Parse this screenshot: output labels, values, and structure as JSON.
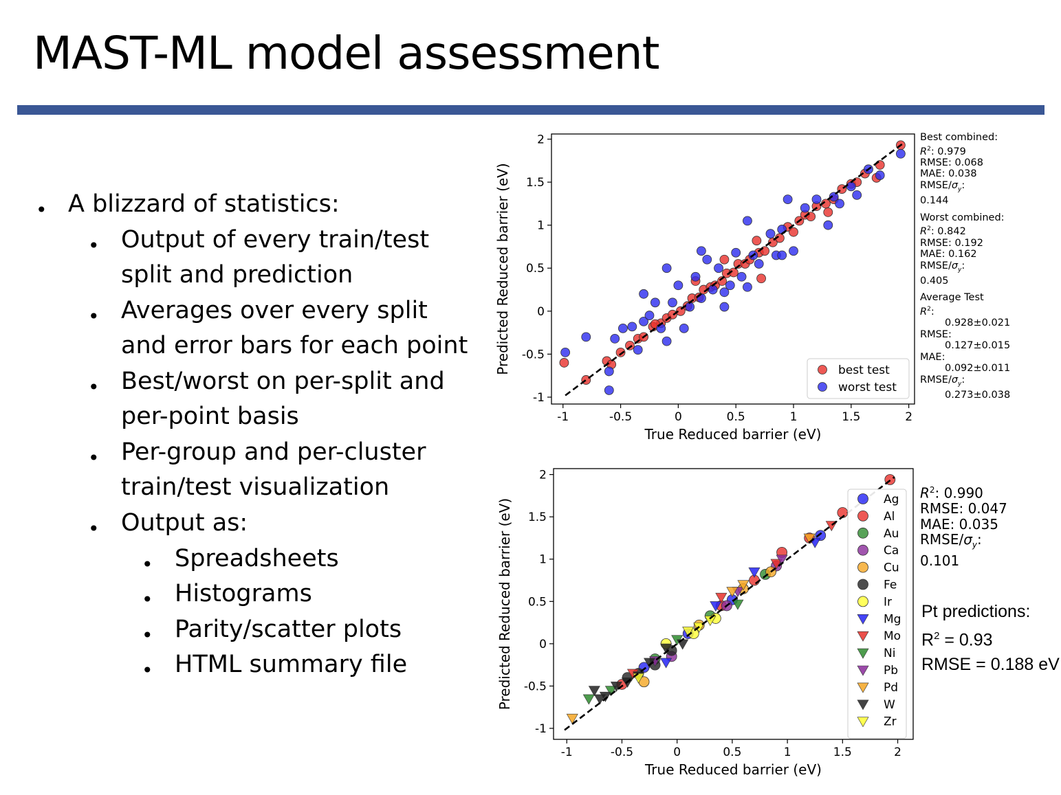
{
  "title": "MAST-ML model assessment",
  "bullets": [
    {
      "level": 1,
      "text": "A blizzard of statistics:"
    },
    {
      "level": 2,
      "text": "Output of every train/test"
    },
    {
      "level": 0,
      "text": "split and prediction"
    },
    {
      "level": 2,
      "text": "Averages over every split"
    },
    {
      "level": 0,
      "text": "and error bars for each point"
    },
    {
      "level": 2,
      "text": "Best/worst on per-split and"
    },
    {
      "level": 0,
      "text": "per-point basis"
    },
    {
      "level": 2,
      "text": "Per-group and per-cluster"
    },
    {
      "level": 0,
      "text": "train/test visualization"
    },
    {
      "level": 2,
      "text": "Output as:"
    },
    {
      "level": 3,
      "text": "Spreadsheets"
    },
    {
      "level": 3,
      "text": "Histograms"
    },
    {
      "level": 3,
      "text": "Parity/scatter plots"
    },
    {
      "level": 3,
      "text": "HTML summary file"
    }
  ],
  "stats_top": {
    "best_header": "Best combined:",
    "best_r2": ": 0.979",
    "best_rmse": "RMSE: 0.068",
    "best_mae": "MAE: 0.038",
    "best_ratio_label": "RMSE/",
    "best_ratio_value": "0.144",
    "worst_header": "Worst combined:",
    "worst_r2": ": 0.842",
    "worst_rmse": "RMSE: 0.192",
    "worst_mae": "MAE: 0.162",
    "worst_ratio_label": "RMSE/",
    "worst_ratio_value": "0.405",
    "avg_header": "Average Test",
    "avg_r2_value": "0.928±0.021",
    "avg_rmse_label": "RMSE:",
    "avg_rmse_value": "0.127±0.015",
    "avg_mae_label": "MAE:",
    "avg_mae_value": "0.092±0.011",
    "avg_ratio_label": "RMSE/",
    "avg_ratio_value": "0.273±0.038"
  },
  "stats_bottom": {
    "r2": ": 0.990",
    "rmse": "RMSE: 0.047",
    "mae": "MAE: 0.035",
    "ratio_label": "RMSE/",
    "ratio_value": "0.101"
  },
  "pt_predictions": {
    "header": "Pt predictions:",
    "r2_label": "R",
    "r2_value": " = 0.93",
    "rmse": "RMSE = 0.188 eV"
  },
  "chart_data": [
    {
      "type": "scatter",
      "xlabel": "True Reduced barrier (eV)",
      "ylabel": "Predicted Reduced barrier (eV)",
      "xlim": [
        -1.1,
        2.05
      ],
      "ylim": [
        -1.08,
        2.06
      ],
      "xticks": [
        -1,
        -0.5,
        0,
        0.5,
        1,
        1.5,
        2
      ],
      "yticks": [
        -1,
        -0.5,
        0,
        0.5,
        1,
        1.5,
        2
      ],
      "tick_labels": [
        "-1",
        "-0.5",
        "0",
        "0.5",
        "1",
        "1.5",
        "2"
      ],
      "grid": false,
      "parity_line": true,
      "legend": "bottom-right",
      "series": [
        {
          "name": "best test",
          "color": "#e8302a",
          "marker": "circle",
          "x": [
            -0.99,
            -0.8,
            -0.62,
            -0.58,
            -0.5,
            -0.42,
            -0.35,
            -0.3,
            -0.22,
            -0.15,
            -0.1,
            -0.05,
            0.02,
            0.08,
            0.12,
            0.18,
            0.22,
            0.28,
            0.32,
            0.38,
            0.42,
            0.48,
            0.52,
            0.58,
            0.62,
            0.7,
            0.75,
            0.82,
            0.88,
            0.95,
            1.0,
            1.05,
            1.1,
            1.15,
            1.2,
            1.28,
            1.35,
            1.42,
            1.5,
            1.55,
            1.62,
            1.72,
            1.75,
            1.93,
            0.72,
            0.4,
            0.15,
            -0.2,
            0.68,
            1.3
          ],
          "y": [
            -0.6,
            -0.8,
            -0.58,
            -0.62,
            -0.48,
            -0.4,
            -0.32,
            -0.3,
            -0.18,
            -0.14,
            -0.08,
            -0.04,
            0.0,
            0.06,
            0.15,
            0.16,
            0.25,
            0.28,
            0.3,
            0.35,
            0.44,
            0.45,
            0.55,
            0.55,
            0.6,
            0.68,
            0.7,
            0.8,
            0.85,
            0.98,
            0.92,
            1.05,
            1.12,
            1.1,
            1.22,
            1.25,
            1.3,
            1.42,
            1.48,
            1.5,
            1.6,
            1.55,
            1.7,
            1.93,
            0.38,
            0.6,
            0.35,
            -0.15,
            0.82,
            1.15
          ]
        },
        {
          "name": "worst test",
          "color": "#2b2bef",
          "marker": "circle",
          "x": [
            -0.98,
            -0.8,
            -0.6,
            -0.55,
            -0.48,
            -0.4,
            -0.35,
            -0.3,
            -0.25,
            -0.2,
            -0.15,
            -0.1,
            -0.05,
            0.0,
            0.05,
            0.1,
            0.15,
            0.2,
            0.25,
            0.3,
            0.35,
            0.4,
            0.45,
            0.5,
            0.55,
            0.6,
            0.65,
            0.7,
            0.8,
            0.85,
            0.9,
            0.95,
            1.0,
            1.1,
            1.2,
            1.3,
            1.35,
            1.4,
            1.5,
            1.55,
            1.65,
            1.75,
            1.93,
            -0.3,
            -0.1,
            0.2,
            0.4,
            0.6,
            0.9,
            -0.6
          ],
          "y": [
            -0.48,
            -0.3,
            -0.92,
            -0.32,
            -0.2,
            -0.18,
            -0.45,
            -0.12,
            -0.05,
            0.1,
            -0.2,
            0.5,
            0.1,
            0.3,
            -0.2,
            0.05,
            0.4,
            0.15,
            0.6,
            0.25,
            0.5,
            0.22,
            0.3,
            0.68,
            0.4,
            1.05,
            0.65,
            0.55,
            0.9,
            0.65,
            0.95,
            1.3,
            0.7,
            1.2,
            1.3,
            1.0,
            1.33,
            1.25,
            1.45,
            1.35,
            1.65,
            1.58,
            1.83,
            0.2,
            -0.35,
            0.7,
            0.05,
            0.28,
            0.65,
            -0.7
          ]
        }
      ]
    },
    {
      "type": "scatter",
      "xlabel": "True Reduced barrier (eV)",
      "ylabel": "Predicted Reduced barrier (eV)",
      "xlim": [
        -1.12,
        2.14
      ],
      "ylim": [
        -1.13,
        2.07
      ],
      "xticks": [
        -1,
        -0.5,
        0,
        0.5,
        1,
        1.5,
        2
      ],
      "yticks": [
        -1,
        -0.5,
        0,
        0.5,
        1,
        1.5,
        2
      ],
      "tick_labels": [
        "-1",
        "-0.5",
        "0",
        "0.5",
        "1",
        "1.5",
        "2"
      ],
      "grid": false,
      "parity_line": true,
      "legend": "top-right",
      "series": [
        {
          "name": "Ag",
          "color": "#2323f5",
          "marker": "circle",
          "x": [
            -0.3,
            0.1,
            0.5,
            1.3
          ],
          "y": [
            -0.28,
            0.12,
            0.52,
            1.28
          ]
        },
        {
          "name": "Al",
          "color": "#e8302a",
          "marker": "circle",
          "x": [
            1.93,
            1.5,
            1.2,
            0.95,
            0.4,
            0.7,
            -0.5
          ],
          "y": [
            1.94,
            1.55,
            1.25,
            1.08,
            0.45,
            0.75,
            -0.48
          ]
        },
        {
          "name": "Au",
          "color": "#2e8b2e",
          "marker": "circle",
          "x": [
            -0.2,
            0.3,
            0.8
          ],
          "y": [
            -0.18,
            0.33,
            0.82
          ]
        },
        {
          "name": "Ca",
          "color": "#8a2a9a",
          "marker": "circle",
          "x": [
            -0.05,
            0.45,
            0.9
          ],
          "y": [
            -0.15,
            0.45,
            0.92
          ]
        },
        {
          "name": "Cu",
          "color": "#f5a623",
          "marker": "circle",
          "x": [
            -0.3,
            0.2,
            0.85,
            0.6
          ],
          "y": [
            -0.45,
            0.22,
            0.85,
            0.65
          ]
        },
        {
          "name": "Fe",
          "color": "#222222",
          "marker": "circle",
          "x": [
            -0.45,
            -0.35,
            -0.2,
            -0.05
          ],
          "y": [
            -0.4,
            -0.35,
            -0.25,
            -0.08
          ]
        },
        {
          "name": "Ir",
          "color": "#ffff33",
          "marker": "circle",
          "x": [
            -0.1,
            0.15,
            0.35
          ],
          "y": [
            0.0,
            0.12,
            0.3
          ]
        },
        {
          "name": "Mg",
          "color": "#2323f5",
          "marker": "triangle-down",
          "x": [
            -0.1,
            0.35,
            0.7,
            1.25
          ],
          "y": [
            -0.22,
            0.45,
            0.85,
            1.2
          ]
        },
        {
          "name": "Mo",
          "color": "#e8302a",
          "marker": "triangle-down",
          "x": [
            -0.4,
            0.4,
            0.9,
            1.4
          ],
          "y": [
            -0.35,
            0.55,
            0.95,
            1.4
          ]
        },
        {
          "name": "Ni",
          "color": "#2e8b2e",
          "marker": "triangle-down",
          "x": [
            -0.8,
            -0.6,
            0.55,
            0.0
          ],
          "y": [
            -0.65,
            -0.55,
            0.47,
            0.05
          ]
        },
        {
          "name": "Pb",
          "color": "#8a2a9a",
          "marker": "triangle-down",
          "x": [
            -0.2,
            0.55,
            0.95
          ],
          "y": [
            -0.2,
            0.62,
            1.0
          ]
        },
        {
          "name": "Pd",
          "color": "#f5a623",
          "marker": "triangle-down",
          "x": [
            -0.95,
            0.5,
            0.6,
            1.2
          ],
          "y": [
            -0.88,
            0.62,
            0.7,
            1.25
          ]
        },
        {
          "name": "W",
          "color": "#222222",
          "marker": "triangle-down",
          "x": [
            -0.75,
            -0.7,
            -0.65,
            -0.55,
            -0.45,
            -0.35,
            -0.25,
            -0.1,
            0.05
          ],
          "y": [
            -0.55,
            -0.65,
            -0.62,
            -0.5,
            -0.45,
            -0.38,
            -0.22,
            -0.05,
            0.0
          ]
        },
        {
          "name": "Zr",
          "color": "#ffff33",
          "marker": "triangle-down",
          "x": [
            -0.35,
            0.1,
            0.2,
            0.3
          ],
          "y": [
            -0.4,
            0.15,
            0.2,
            0.28
          ]
        }
      ]
    }
  ]
}
